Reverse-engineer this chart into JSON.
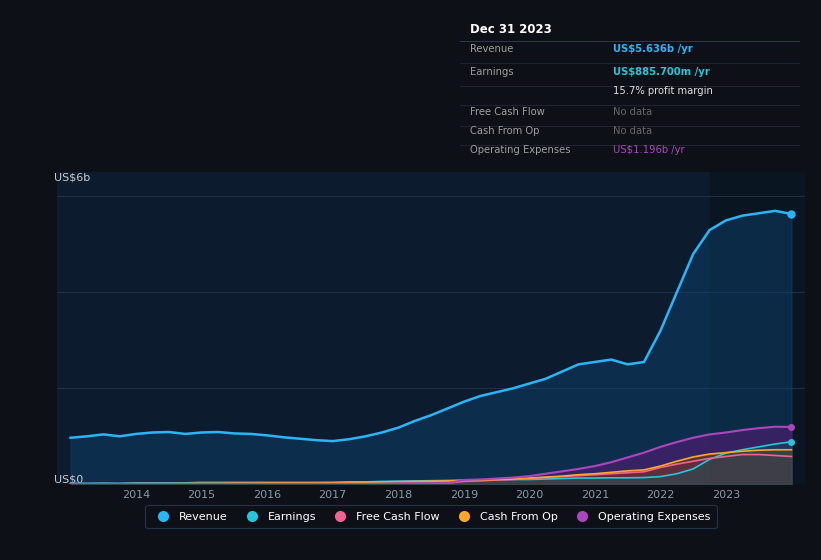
{
  "bg_color": "#0d1117",
  "plot_bg_color": "#0d1b2e",
  "grid_color": "#253550",
  "years": [
    2013.0,
    2013.25,
    2013.5,
    2013.75,
    2014.0,
    2014.25,
    2014.5,
    2014.75,
    2015.0,
    2015.25,
    2015.5,
    2015.75,
    2016.0,
    2016.25,
    2016.5,
    2016.75,
    2017.0,
    2017.25,
    2017.5,
    2017.75,
    2018.0,
    2018.25,
    2018.5,
    2018.75,
    2019.0,
    2019.25,
    2019.5,
    2019.75,
    2020.0,
    2020.25,
    2020.5,
    2020.75,
    2021.0,
    2021.25,
    2021.5,
    2021.75,
    2022.0,
    2022.25,
    2022.5,
    2022.75,
    2023.0,
    2023.25,
    2023.5,
    2023.75,
    2024.0
  ],
  "revenue": [
    0.97,
    1.0,
    1.04,
    1.0,
    1.05,
    1.08,
    1.09,
    1.05,
    1.08,
    1.09,
    1.06,
    1.05,
    1.02,
    0.98,
    0.95,
    0.92,
    0.9,
    0.94,
    1.0,
    1.08,
    1.18,
    1.32,
    1.44,
    1.58,
    1.72,
    1.84,
    1.92,
    2.0,
    2.1,
    2.2,
    2.35,
    2.5,
    2.55,
    2.6,
    2.5,
    2.55,
    3.2,
    4.0,
    4.8,
    5.3,
    5.5,
    5.6,
    5.65,
    5.7,
    5.636
  ],
  "earnings": [
    0.02,
    0.02,
    0.025,
    0.02,
    0.03,
    0.03,
    0.03,
    0.03,
    0.04,
    0.04,
    0.04,
    0.04,
    0.04,
    0.04,
    0.04,
    0.04,
    0.04,
    0.05,
    0.05,
    0.06,
    0.065,
    0.07,
    0.075,
    0.08,
    0.085,
    0.09,
    0.095,
    0.1,
    0.1,
    0.11,
    0.12,
    0.13,
    0.13,
    0.135,
    0.135,
    0.14,
    0.16,
    0.22,
    0.32,
    0.52,
    0.65,
    0.72,
    0.78,
    0.84,
    0.8857
  ],
  "free_cash_flow": [
    0.01,
    0.01,
    0.01,
    0.01,
    0.01,
    0.01,
    0.01,
    0.01,
    0.01,
    0.01,
    0.01,
    0.01,
    0.01,
    0.01,
    0.01,
    0.01,
    0.01,
    0.01,
    0.01,
    0.01,
    0.02,
    0.02,
    0.02,
    0.02,
    0.06,
    0.07,
    0.09,
    0.1,
    0.12,
    0.14,
    0.16,
    0.18,
    0.2,
    0.22,
    0.24,
    0.26,
    0.35,
    0.42,
    0.48,
    0.54,
    0.58,
    0.62,
    0.62,
    0.6,
    0.58
  ],
  "cash_from_op": [
    0.01,
    0.01,
    0.01,
    0.01,
    0.015,
    0.015,
    0.015,
    0.015,
    0.02,
    0.02,
    0.025,
    0.025,
    0.03,
    0.03,
    0.03,
    0.03,
    0.035,
    0.04,
    0.045,
    0.05,
    0.055,
    0.06,
    0.065,
    0.07,
    0.08,
    0.09,
    0.1,
    0.11,
    0.13,
    0.15,
    0.17,
    0.2,
    0.22,
    0.25,
    0.28,
    0.3,
    0.38,
    0.48,
    0.57,
    0.63,
    0.66,
    0.69,
    0.71,
    0.72,
    0.72
  ],
  "op_expenses": [
    0.01,
    0.01,
    0.01,
    0.01,
    0.01,
    0.01,
    0.01,
    0.01,
    0.01,
    0.01,
    0.01,
    0.01,
    0.01,
    0.01,
    0.01,
    0.01,
    0.01,
    0.01,
    0.01,
    0.01,
    0.02,
    0.02,
    0.02,
    0.02,
    0.09,
    0.1,
    0.12,
    0.14,
    0.17,
    0.22,
    0.27,
    0.32,
    0.38,
    0.46,
    0.56,
    0.66,
    0.78,
    0.88,
    0.97,
    1.04,
    1.08,
    1.13,
    1.17,
    1.2,
    1.196
  ],
  "revenue_color": "#29b6f6",
  "earnings_color": "#26c6da",
  "free_cash_flow_color": "#f06292",
  "cash_from_op_color": "#ffa726",
  "op_expenses_color": "#ab47bc",
  "highlight_start": 2022.75,
  "highlight_end": 2024.2,
  "ylim": [
    0,
    6.5
  ],
  "ytick_labels": [
    "US$0",
    "US$6b"
  ],
  "ytick_vals": [
    0,
    6.0
  ],
  "xticks": [
    2014,
    2015,
    2016,
    2017,
    2018,
    2019,
    2020,
    2021,
    2022,
    2023
  ],
  "xmin": 2012.8,
  "xmax": 2024.2,
  "tooltip_title": "Dec 31 2023",
  "tooltip_bg": "#0d1421",
  "tooltip_border": "#2a3a5a",
  "tooltip_rows": [
    {
      "label": "Revenue",
      "value": "US$5.636b /yr",
      "value_color": "#29b6f6"
    },
    {
      "label": "Earnings",
      "value": "US$885.700m /yr",
      "value_color": "#26c6da"
    },
    {
      "label": "",
      "value": "15.7% profit margin",
      "value_color": "#e0e0e0"
    },
    {
      "label": "Free Cash Flow",
      "value": "No data",
      "value_color": "#666666"
    },
    {
      "label": "Cash From Op",
      "value": "No data",
      "value_color": "#666666"
    },
    {
      "label": "Operating Expenses",
      "value": "US$1.196b /yr",
      "value_color": "#ab47bc"
    }
  ],
  "legend_items": [
    {
      "label": "Revenue",
      "color": "#29b6f6"
    },
    {
      "label": "Earnings",
      "color": "#26c6da"
    },
    {
      "label": "Free Cash Flow",
      "color": "#f06292"
    },
    {
      "label": "Cash From Op",
      "color": "#ffa726"
    },
    {
      "label": "Operating Expenses",
      "color": "#ab47bc"
    }
  ]
}
